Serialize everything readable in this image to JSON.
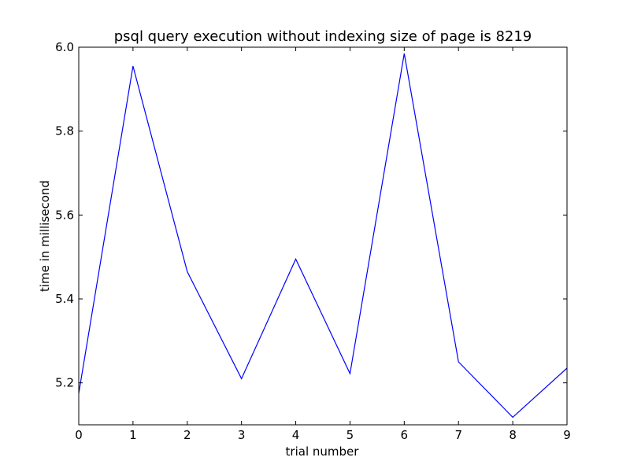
{
  "chart_data": {
    "type": "line",
    "title": "psql query execution without indexing size of page is 8219",
    "xlabel": "trial number",
    "ylabel": "time in millisecond",
    "xlim": [
      0,
      9
    ],
    "ylim": [
      5.1,
      6.0
    ],
    "xticks": [
      0,
      1,
      2,
      3,
      4,
      5,
      6,
      7,
      8,
      9
    ],
    "yticks": [
      5.2,
      5.4,
      5.6,
      5.8,
      6.0
    ],
    "ytick_labels": [
      "5.2",
      "5.4",
      "5.6",
      "5.8",
      "6.0"
    ],
    "grid": false,
    "series": [
      {
        "color": "#0000ff",
        "x": [
          0,
          1,
          2,
          3,
          4,
          5,
          6,
          7,
          8,
          9
        ],
        "values": [
          5.175,
          5.955,
          5.465,
          5.21,
          5.495,
          5.222,
          5.985,
          5.25,
          5.118,
          5.235
        ]
      }
    ]
  }
}
